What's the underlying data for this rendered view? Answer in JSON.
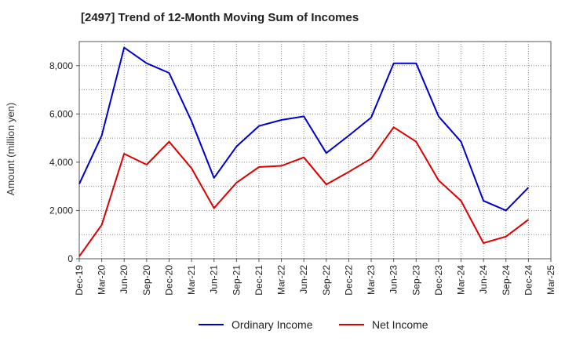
{
  "chart_data": {
    "type": "line",
    "title": "[2497]  Trend of 12-Month Moving Sum of Incomes",
    "xlabel": "",
    "ylabel": "Amount (million yen)",
    "ylim": [
      0,
      9000
    ],
    "yticks": [
      0,
      2000,
      4000,
      6000,
      8000
    ],
    "ytick_labels": [
      "0",
      "2,000",
      "4,000",
      "6,000",
      "8,000"
    ],
    "categories": [
      "Dec-19",
      "Mar-20",
      "Jun-20",
      "Sep-20",
      "Dec-20",
      "Mar-21",
      "Jun-21",
      "Sep-21",
      "Dec-21",
      "Mar-22",
      "Jun-22",
      "Sep-22",
      "Dec-22",
      "Mar-23",
      "Jun-23",
      "Sep-23",
      "Dec-23",
      "Mar-24",
      "Jun-24",
      "Sep-24",
      "Dec-24",
      "Mar-25"
    ],
    "grid": true,
    "legend_position": "bottom-center",
    "series": [
      {
        "name": "Ordinary Income",
        "color": "#0000cc",
        "values": [
          3100,
          5100,
          8750,
          8100,
          7700,
          5700,
          3350,
          4650,
          5500,
          5750,
          5900,
          4380,
          5100,
          5850,
          8100,
          8100,
          5900,
          4850,
          2400,
          2000,
          2950,
          null
        ]
      },
      {
        "name": "Net Income",
        "color": "#dd0000",
        "values": [
          100,
          1400,
          4350,
          3900,
          4850,
          3750,
          2100,
          3150,
          3800,
          3850,
          4200,
          3080,
          3600,
          4150,
          5450,
          4850,
          3250,
          2400,
          650,
          920,
          1620,
          null
        ]
      }
    ]
  }
}
